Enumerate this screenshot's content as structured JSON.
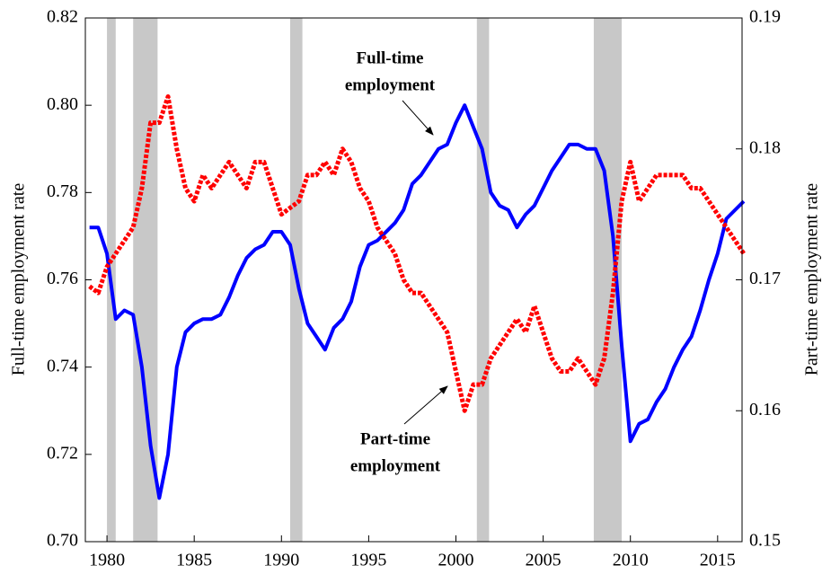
{
  "chart_data": {
    "type": "line",
    "ylabel": "Full-time employment rate",
    "y2label": "Part-time employment rate",
    "annotations": [
      {
        "lines": [
          "Full-time",
          "employment"
        ]
      },
      {
        "lines": [
          "Part-time",
          "employment"
        ]
      }
    ],
    "recessions": [
      [
        1980.0,
        1980.5
      ],
      [
        1981.5,
        1982.9
      ],
      [
        1990.5,
        1991.2
      ],
      [
        2001.2,
        2001.9
      ],
      [
        2007.9,
        2009.5
      ]
    ],
    "recession_color": "#c8c8c8",
    "xlim": [
      1978.76,
      2016.4
    ],
    "xticks": [
      1980,
      1985,
      1990,
      1995,
      2000,
      2005,
      2010,
      2015
    ],
    "ylim": [
      0.7,
      0.82
    ],
    "yticks": [
      {
        "value": 0.7,
        "label": "0.70"
      },
      0.72,
      0.74,
      0.76,
      0.78,
      {
        "value": 0.8,
        "label": "0.80"
      },
      0.82
    ],
    "y2lim": [
      0.15,
      0.19
    ],
    "y2ticks": [
      0.15,
      0.16,
      0.17,
      0.18,
      0.19
    ],
    "x": [
      1979.0,
      1979.5,
      1980.0,
      1980.5,
      1981.0,
      1981.5,
      1982.0,
      1982.5,
      1983.0,
      1983.5,
      1984.0,
      1984.5,
      1985.0,
      1985.5,
      1986.0,
      1986.5,
      1987.0,
      1987.5,
      1988.0,
      1988.5,
      1989.0,
      1989.5,
      1990.0,
      1990.5,
      1991.0,
      1991.5,
      1992.0,
      1992.5,
      1993.0,
      1993.5,
      1994.0,
      1994.5,
      1995.0,
      1995.5,
      1996.0,
      1996.5,
      1997.0,
      1997.5,
      1998.0,
      1998.5,
      1999.0,
      1999.5,
      2000.0,
      2000.5,
      2001.0,
      2001.5,
      2002.0,
      2002.5,
      2003.0,
      2003.5,
      2004.0,
      2004.5,
      2005.0,
      2005.5,
      2006.0,
      2006.5,
      2007.0,
      2007.5,
      2008.0,
      2008.5,
      2009.0,
      2009.5,
      2010.0,
      2010.5,
      2011.0,
      2011.5,
      2012.0,
      2012.5,
      2013.0,
      2013.5,
      2014.0,
      2014.5,
      2015.0,
      2015.5,
      2016.0,
      2016.5
    ],
    "series": [
      {
        "color": "#0000ff",
        "dash": false,
        "axis": "y",
        "values": [
          0.772,
          0.772,
          0.766,
          0.751,
          0.753,
          0.752,
          0.74,
          0.722,
          0.71,
          0.72,
          0.74,
          0.748,
          0.75,
          0.751,
          0.751,
          0.752,
          0.756,
          0.761,
          0.765,
          0.767,
          0.768,
          0.771,
          0.771,
          0.768,
          0.758,
          0.75,
          0.747,
          0.744,
          0.749,
          0.751,
          0.755,
          0.763,
          0.768,
          0.769,
          0.771,
          0.773,
          0.776,
          0.782,
          0.784,
          0.787,
          0.79,
          0.791,
          0.796,
          0.8,
          0.795,
          0.79,
          0.78,
          0.777,
          0.776,
          0.772,
          0.775,
          0.777,
          0.781,
          0.785,
          0.788,
          0.791,
          0.791,
          0.79,
          0.79,
          0.785,
          0.77,
          0.745,
          0.723,
          0.727,
          0.728,
          0.732,
          0.735,
          0.74,
          0.744,
          0.747,
          0.753,
          0.76,
          0.766,
          0.774,
          0.776,
          0.778
        ]
      },
      {
        "color": "#ff0000",
        "dash": true,
        "axis": "y2",
        "values": [
          0.1695,
          0.169,
          0.171,
          0.172,
          0.173,
          0.174,
          0.177,
          0.182,
          0.182,
          0.184,
          0.18,
          0.177,
          0.176,
          0.178,
          0.177,
          0.178,
          0.179,
          0.178,
          0.177,
          0.179,
          0.179,
          0.177,
          0.175,
          0.1755,
          0.176,
          0.178,
          0.178,
          0.179,
          0.178,
          0.18,
          0.179,
          0.177,
          0.176,
          0.174,
          0.173,
          0.172,
          0.17,
          0.169,
          0.169,
          0.168,
          0.167,
          0.166,
          0.163,
          0.16,
          0.162,
          0.162,
          0.164,
          0.165,
          0.166,
          0.167,
          0.166,
          0.168,
          0.166,
          0.164,
          0.163,
          0.163,
          0.164,
          0.163,
          0.162,
          0.164,
          0.169,
          0.176,
          0.179,
          0.176,
          0.177,
          0.178,
          0.178,
          0.178,
          0.178,
          0.177,
          0.177,
          0.176,
          0.175,
          0.174,
          0.173,
          0.172
        ]
      }
    ]
  }
}
